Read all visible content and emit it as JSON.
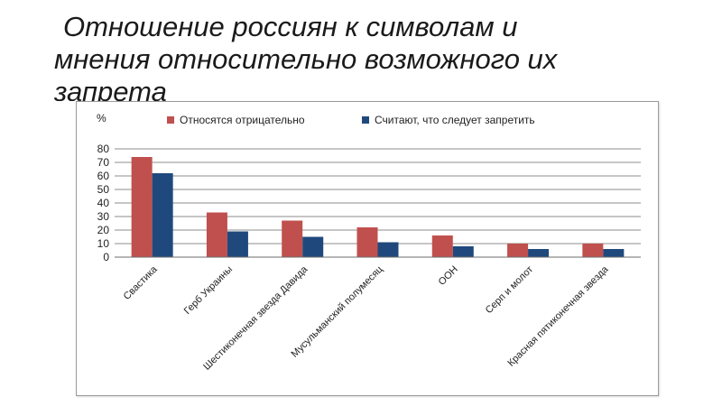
{
  "slide": {
    "title_line1": "Отношение россиян к символам и",
    "title_line2": "мнения относительно возможного их",
    "title_line3": "запрета"
  },
  "chart_data": {
    "type": "bar",
    "title": "",
    "xlabel": "",
    "ylabel": "%",
    "ylim": [
      0,
      80
    ],
    "yticks": [
      0,
      10,
      20,
      30,
      40,
      50,
      60,
      70,
      80
    ],
    "grid": true,
    "legend_position": "top",
    "categories": [
      "Свастика",
      "Герб Украины",
      "Шестиконечная звезда Давида",
      "Мусульманский полумесяц",
      "ООН",
      "Серп и молот",
      "Красная пятиконечная звезда"
    ],
    "series": [
      {
        "name": "Относятся отрицательно",
        "color": "#c0504d",
        "values": [
          74,
          33,
          27,
          22,
          16,
          10,
          10
        ]
      },
      {
        "name": "Считают, что следует запретить",
        "color": "#1f497d",
        "values": [
          62,
          19,
          15,
          11,
          8,
          6,
          6
        ]
      }
    ]
  }
}
